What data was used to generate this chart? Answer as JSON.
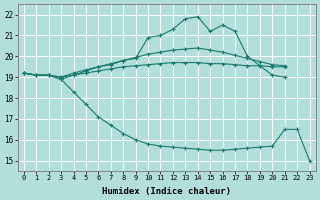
{
  "xlabel": "Humidex (Indice chaleur)",
  "bg_color": "#b2dfdb",
  "grid_color": "#ffffff",
  "line_color": "#1a7a6e",
  "xlim": [
    -0.5,
    23.5
  ],
  "ylim": [
    14.5,
    22.5
  ],
  "xticks": [
    0,
    1,
    2,
    3,
    4,
    5,
    6,
    7,
    8,
    9,
    10,
    11,
    12,
    13,
    14,
    15,
    16,
    17,
    18,
    19,
    20,
    21,
    22,
    23
  ],
  "yticks": [
    15,
    16,
    17,
    18,
    19,
    20,
    21,
    22
  ],
  "series": [
    {
      "x": [
        0,
        1,
        2,
        3,
        4,
        5,
        6,
        7,
        8,
        9,
        10,
        11,
        12,
        13,
        14,
        15,
        16,
        17,
        18,
        19,
        20,
        21
      ],
      "y": [
        19.2,
        19.1,
        19.1,
        18.9,
        19.1,
        19.3,
        19.5,
        19.6,
        19.8,
        19.9,
        20.9,
        21.0,
        21.3,
        21.8,
        21.9,
        21.2,
        21.5,
        21.2,
        20.0,
        19.55,
        19.1,
        19.0
      ]
    },
    {
      "x": [
        0,
        1,
        2,
        3,
        4,
        5,
        6,
        7,
        8,
        9,
        10,
        11,
        12,
        13,
        14,
        15,
        16,
        17,
        18,
        19,
        20,
        21
      ],
      "y": [
        19.2,
        19.1,
        19.1,
        19.0,
        19.2,
        19.35,
        19.5,
        19.65,
        19.8,
        19.95,
        20.1,
        20.2,
        20.3,
        20.35,
        20.4,
        20.3,
        20.2,
        20.05,
        19.9,
        19.75,
        19.6,
        19.55
      ]
    },
    {
      "x": [
        0,
        1,
        2,
        3,
        4,
        5,
        6,
        7,
        8,
        9,
        10,
        11,
        12,
        13,
        14,
        15,
        16,
        17,
        18,
        19,
        20,
        21
      ],
      "y": [
        19.2,
        19.1,
        19.1,
        19.0,
        19.1,
        19.2,
        19.3,
        19.4,
        19.5,
        19.55,
        19.6,
        19.65,
        19.7,
        19.7,
        19.7,
        19.65,
        19.65,
        19.6,
        19.55,
        19.55,
        19.5,
        19.5
      ]
    },
    {
      "x": [
        0,
        1,
        2,
        3,
        4,
        5,
        6,
        7,
        8,
        9,
        10,
        11,
        12,
        13,
        14,
        15,
        16,
        17,
        18,
        19,
        20,
        21,
        22,
        23
      ],
      "y": [
        19.2,
        19.1,
        19.1,
        18.9,
        18.3,
        17.7,
        17.1,
        16.7,
        16.3,
        16.0,
        15.8,
        15.7,
        15.65,
        15.6,
        15.55,
        15.5,
        15.5,
        15.55,
        15.6,
        15.65,
        15.7,
        16.5,
        16.5,
        15.0
      ]
    }
  ]
}
